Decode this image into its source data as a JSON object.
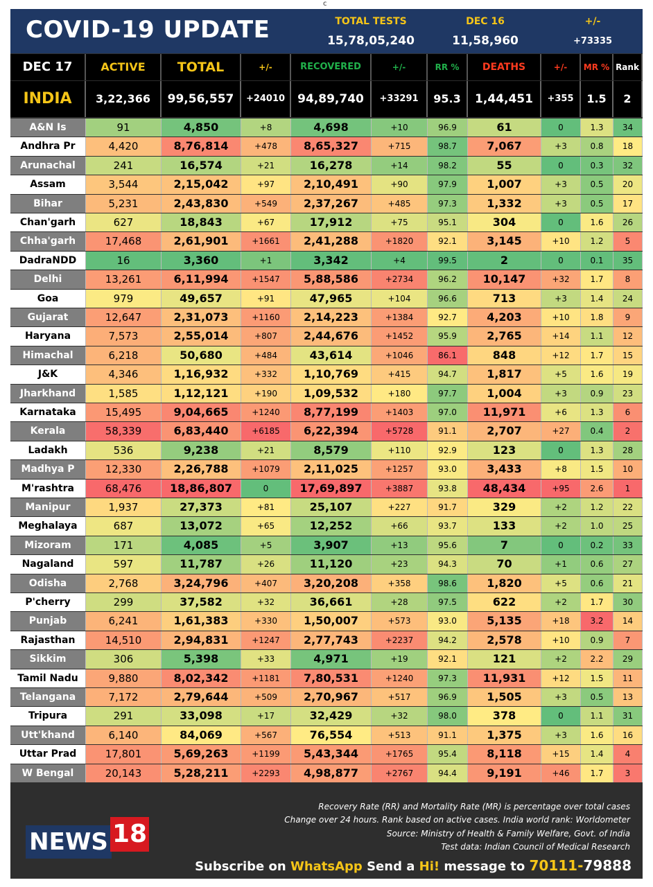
{
  "top_mark": "c",
  "header": {
    "title": "COVID-19 UPDATE",
    "total_tests_label": "TOTAL TESTS",
    "total_tests_value": "15,78,05,240",
    "test_date_label": "DEC 16",
    "test_date_value": "11,58,960",
    "change_label": "+/-",
    "change_value": "+73335"
  },
  "columns": [
    "DEC 17",
    "ACTIVE",
    "TOTAL",
    "+/-",
    "RECOVERED",
    "+/-",
    "RR %",
    "DEATHS",
    "+/-",
    "MR %",
    "Rank"
  ],
  "india": [
    "INDIA",
    "3,22,366",
    "99,56,557",
    "+24010",
    "94,89,740",
    "+33291",
    "95.3",
    "1,44,451",
    "+355",
    "1.5",
    "2"
  ],
  "rows": [
    [
      "A&N Is",
      "91",
      "4,850",
      "+8",
      "4,698",
      "+10",
      "96.9",
      "61",
      "0",
      "1.3",
      "34"
    ],
    [
      "Andhra Pr",
      "4,420",
      "8,76,814",
      "+478",
      "8,65,327",
      "+715",
      "98.7",
      "7,067",
      "+3",
      "0.8",
      "18"
    ],
    [
      "Arunachal",
      "241",
      "16,574",
      "+21",
      "16,278",
      "+14",
      "98.2",
      "55",
      "0",
      "0.3",
      "32"
    ],
    [
      "Assam",
      "3,544",
      "2,15,042",
      "+97",
      "2,10,491",
      "+90",
      "97.9",
      "1,007",
      "+3",
      "0.5",
      "20"
    ],
    [
      "Bihar",
      "5,231",
      "2,43,830",
      "+549",
      "2,37,267",
      "+485",
      "97.3",
      "1,332",
      "+3",
      "0.5",
      "17"
    ],
    [
      "Chan'garh",
      "627",
      "18,843",
      "+67",
      "17,912",
      "+75",
      "95.1",
      "304",
      "0",
      "1.6",
      "26"
    ],
    [
      "Chha'garh",
      "17,468",
      "2,61,901",
      "+1661",
      "2,41,288",
      "+1820",
      "92.1",
      "3,145",
      "+10",
      "1.2",
      "5"
    ],
    [
      "DadraNDD",
      "16",
      "3,360",
      "+1",
      "3,342",
      "+4",
      "99.5",
      "2",
      "0",
      "0.1",
      "35"
    ],
    [
      "Delhi",
      "13,261",
      "6,11,994",
      "+1547",
      "5,88,586",
      "+2734",
      "96.2",
      "10,147",
      "+32",
      "1.7",
      "8"
    ],
    [
      "Goa",
      "979",
      "49,657",
      "+91",
      "47,965",
      "+104",
      "96.6",
      "713",
      "+3",
      "1.4",
      "24"
    ],
    [
      "Gujarat",
      "12,647",
      "2,31,073",
      "+1160",
      "2,14,223",
      "+1384",
      "92.7",
      "4,203",
      "+10",
      "1.8",
      "9"
    ],
    [
      "Haryana",
      "7,573",
      "2,55,014",
      "+807",
      "2,44,676",
      "+1452",
      "95.9",
      "2,765",
      "+14",
      "1.1",
      "12"
    ],
    [
      "Himachal",
      "6,218",
      "50,680",
      "+484",
      "43,614",
      "+1046",
      "86.1",
      "848",
      "+12",
      "1.7",
      "15"
    ],
    [
      "J&K",
      "4,346",
      "1,16,932",
      "+332",
      "1,10,769",
      "+415",
      "94.7",
      "1,817",
      "+5",
      "1.6",
      "19"
    ],
    [
      "Jharkhand",
      "1,585",
      "1,12,121",
      "+190",
      "1,09,532",
      "+180",
      "97.7",
      "1,004",
      "+3",
      "0.9",
      "23"
    ],
    [
      "Karnataka",
      "15,495",
      "9,04,665",
      "+1240",
      "8,77,199",
      "+1403",
      "97.0",
      "11,971",
      "+6",
      "1.3",
      "6"
    ],
    [
      "Kerala",
      "58,339",
      "6,83,440",
      "+6185",
      "6,22,394",
      "+5728",
      "91.1",
      "2,707",
      "+27",
      "0.4",
      "2"
    ],
    [
      "Ladakh",
      "536",
      "9,238",
      "+21",
      "8,579",
      "+110",
      "92.9",
      "123",
      "0",
      "1.3",
      "28"
    ],
    [
      "Madhya P",
      "12,330",
      "2,26,788",
      "+1079",
      "2,11,025",
      "+1257",
      "93.0",
      "3,433",
      "+8",
      "1.5",
      "10"
    ],
    [
      "M'rashtra",
      "68,476",
      "18,86,807",
      "0",
      "17,69,897",
      "+3887",
      "93.8",
      "48,434",
      "+95",
      "2.6",
      "1"
    ],
    [
      "Manipur",
      "1,937",
      "27,373",
      "+81",
      "25,107",
      "+227",
      "91.7",
      "329",
      "+2",
      "1.2",
      "22"
    ],
    [
      "Meghalaya",
      "687",
      "13,072",
      "+65",
      "12,252",
      "+66",
      "93.7",
      "133",
      "+2",
      "1.0",
      "25"
    ],
    [
      "Mizoram",
      "171",
      "4,085",
      "+5",
      "3,907",
      "+13",
      "95.6",
      "7",
      "0",
      "0.2",
      "33"
    ],
    [
      "Nagaland",
      "597",
      "11,787",
      "+26",
      "11,120",
      "+23",
      "94.3",
      "70",
      "+1",
      "0.6",
      "27"
    ],
    [
      "Odisha",
      "2,768",
      "3,24,796",
      "+407",
      "3,20,208",
      "+358",
      "98.6",
      "1,820",
      "+5",
      "0.6",
      "21"
    ],
    [
      "P'cherry",
      "299",
      "37,582",
      "+32",
      "36,661",
      "+28",
      "97.5",
      "622",
      "+2",
      "1.7",
      "30"
    ],
    [
      "Punjab",
      "6,241",
      "1,61,383",
      "+330",
      "1,50,007",
      "+573",
      "93.0",
      "5,135",
      "+18",
      "3.2",
      "14"
    ],
    [
      "Rajasthan",
      "14,510",
      "2,94,831",
      "+1247",
      "2,77,743",
      "+2237",
      "94.2",
      "2,578",
      "+10",
      "0.9",
      "7"
    ],
    [
      "Sikkim",
      "306",
      "5,398",
      "+33",
      "4,971",
      "+19",
      "92.1",
      "121",
      "+2",
      "2.2",
      "29"
    ],
    [
      "Tamil Nadu",
      "9,880",
      "8,02,342",
      "+1181",
      "7,80,531",
      "+1240",
      "97.3",
      "11,931",
      "+12",
      "1.5",
      "11"
    ],
    [
      "Telangana",
      "7,172",
      "2,79,644",
      "+509",
      "2,70,967",
      "+517",
      "96.9",
      "1,505",
      "+3",
      "0.5",
      "13"
    ],
    [
      "Tripura",
      "291",
      "33,098",
      "+17",
      "32,429",
      "+32",
      "98.0",
      "378",
      "0",
      "1.1",
      "31"
    ],
    [
      "Utt'khand",
      "6,140",
      "84,069",
      "+567",
      "76,554",
      "+513",
      "91.1",
      "1,375",
      "+3",
      "1.6",
      "16"
    ],
    [
      "Uttar Prad",
      "17,801",
      "5,69,263",
      "+1199",
      "5,43,344",
      "+1765",
      "95.4",
      "8,118",
      "+15",
      "1.4",
      "4"
    ],
    [
      "W Bengal",
      "20,143",
      "5,28,211",
      "+2293",
      "4,98,877",
      "+2767",
      "94.4",
      "9,191",
      "+46",
      "1.7",
      "3"
    ]
  ],
  "footer": {
    "notes": [
      "Recovery Rate (RR) and Mortality Rate (MR) is percentage over total cases",
      "Change over 24 hours. Rank based on active cases. India world rank: Worldometer",
      "Source: Ministry of Health & Family Welfare, Govt. of India",
      "Test data: Indian Council of Medical Research"
    ],
    "logo_news": "NEWS",
    "logo_18": "18",
    "sub_1": "Subscribe on ",
    "sub_2": "WhatsApp",
    "sub_3": " Send a ",
    "sub_4": "Hi!",
    "sub_5": " message to ",
    "sub_6": "70111-",
    "sub_7": "79888"
  },
  "colors": {
    "title_bar": "#1f3864",
    "header_yellow": "#f5c518",
    "recovered_green": "#21b14b",
    "deaths_red": "#ff3b1f",
    "green": "#63be7b",
    "yellow": "#ffeb84",
    "red": "#f8696b"
  }
}
